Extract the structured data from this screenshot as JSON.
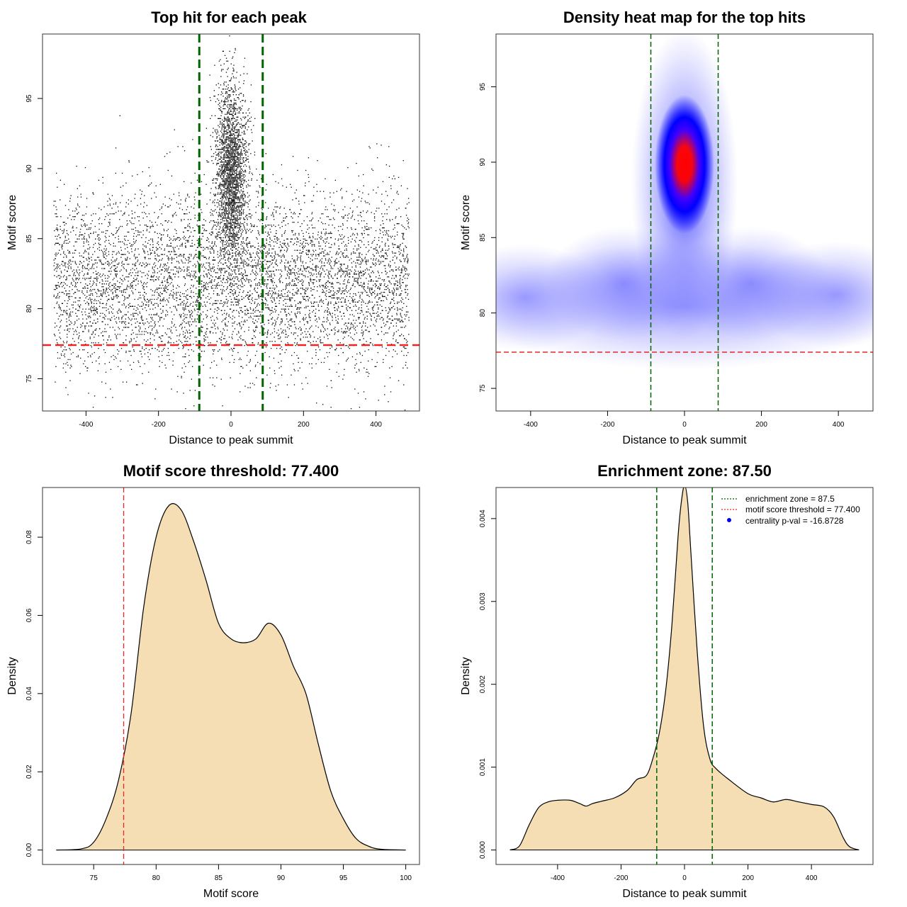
{
  "colors": {
    "green_line": "#006400",
    "red_line": "#e8262a",
    "density_fill": "#f5deb3",
    "heat_low": "#ffffff",
    "heat_mid": "#0000ff",
    "heat_high": "#ff0000"
  },
  "chart_data": [
    {
      "id": "scatter",
      "type": "scatter",
      "title": "Top hit for each peak",
      "xlabel": "Distance to peak summit",
      "ylabel": "Motif score",
      "xlim": [
        -520,
        520
      ],
      "ylim": [
        72.7,
        99.6
      ],
      "xticks": [
        -400,
        -200,
        0,
        200,
        400
      ],
      "yticks": [
        75,
        80,
        85,
        90,
        95
      ],
      "vlines": [
        -87.5,
        87.5
      ],
      "hline": 77.4,
      "n_points": 9000,
      "distribution": {
        "central_fraction": 0.3,
        "central_x_mean": 0,
        "central_x_sd": 22,
        "central_y_mean": 89.5,
        "central_y_sd": 3.2,
        "background_x_range": [
          -490,
          490
        ],
        "background_y_mean": 82,
        "background_y_sd": 3.1
      }
    },
    {
      "id": "heatmap",
      "type": "heatmap",
      "title": "Density heat map for the top hits",
      "xlabel": "Distance to peak summit",
      "ylabel": "Motif score",
      "xlim": [
        -490,
        490
      ],
      "ylim": [
        73.5,
        98.5
      ],
      "xticks": [
        -400,
        -200,
        0,
        200,
        400
      ],
      "yticks": [
        75,
        80,
        85,
        90,
        95
      ],
      "vlines": [
        -87.5,
        87.5
      ],
      "hline": 77.4,
      "peak": {
        "x": 0,
        "y": 90
      }
    },
    {
      "id": "score-density",
      "type": "area",
      "title": "Motif score threshold: 77.400",
      "xlabel": "Motif score",
      "ylabel": "Density",
      "xlim": [
        70.9,
        101.1
      ],
      "ylim": [
        -0.0037,
        0.0927
      ],
      "xticks": [
        75,
        80,
        85,
        90,
        95,
        100
      ],
      "yticks": [
        0.0,
        0.02,
        0.04,
        0.06,
        0.08
      ],
      "ytick_labels": [
        "0.00",
        "0.02",
        "0.04",
        "0.06",
        "0.08"
      ],
      "vline": 77.4,
      "x": [
        72,
        74,
        75,
        76,
        77,
        78,
        79,
        80,
        81,
        82,
        83,
        84,
        85,
        86,
        87,
        88,
        89,
        90,
        91,
        92,
        93,
        94,
        95,
        96,
        97,
        98,
        100
      ],
      "y": [
        0.0,
        0.0003,
        0.002,
        0.008,
        0.018,
        0.035,
        0.062,
        0.08,
        0.088,
        0.087,
        0.079,
        0.069,
        0.058,
        0.054,
        0.053,
        0.054,
        0.058,
        0.055,
        0.047,
        0.04,
        0.027,
        0.015,
        0.008,
        0.003,
        0.001,
        0.0002,
        0.0
      ]
    },
    {
      "id": "distance-density",
      "type": "area",
      "title": "Enrichment zone: 87.50",
      "xlabel": "Distance to peak summit",
      "ylabel": "Density",
      "xlim": [
        -594,
        594
      ],
      "ylim": [
        -0.000175,
        0.004375
      ],
      "xticks": [
        -400,
        -200,
        0,
        200,
        400
      ],
      "yticks": [
        0.0,
        0.001,
        0.002,
        0.003,
        0.004
      ],
      "ytick_labels": [
        "0.000",
        "0.001",
        "0.002",
        "0.003",
        "0.004"
      ],
      "vlines": [
        -87.5,
        87.5
      ],
      "x": [
        -550,
        -520,
        -490,
        -460,
        -430,
        -400,
        -360,
        -330,
        -310,
        -290,
        -260,
        -220,
        -180,
        -150,
        -120,
        -100,
        -80,
        -60,
        -40,
        -20,
        -10,
        0,
        10,
        20,
        40,
        60,
        80,
        100,
        140,
        200,
        240,
        280,
        320,
        360,
        400,
        440,
        470,
        500,
        520,
        550
      ],
      "y": [
        0.0,
        5e-05,
        0.0003,
        0.00051,
        0.00058,
        0.0006,
        0.0006,
        0.00056,
        0.00053,
        0.00056,
        0.00059,
        0.00063,
        0.00072,
        0.00085,
        0.0009,
        0.0011,
        0.0014,
        0.0019,
        0.0027,
        0.0038,
        0.0042,
        0.0044,
        0.0042,
        0.0036,
        0.0024,
        0.0015,
        0.0011,
        0.00098,
        0.00085,
        0.00068,
        0.00063,
        0.00058,
        0.00061,
        0.00058,
        0.00055,
        0.00052,
        0.0004,
        0.00015,
        4e-05,
        0.0
      ]
    }
  ],
  "legend": {
    "items": [
      {
        "label": "enrichment zone = 87.5",
        "kind": "dotted-line",
        "color": "#006400"
      },
      {
        "label": "motif score threshold = 77.400",
        "kind": "dotted-line",
        "color": "#e8262a"
      },
      {
        "label": "centrality p-val = -16.8728",
        "kind": "dot",
        "color": "#0000ff"
      }
    ]
  }
}
